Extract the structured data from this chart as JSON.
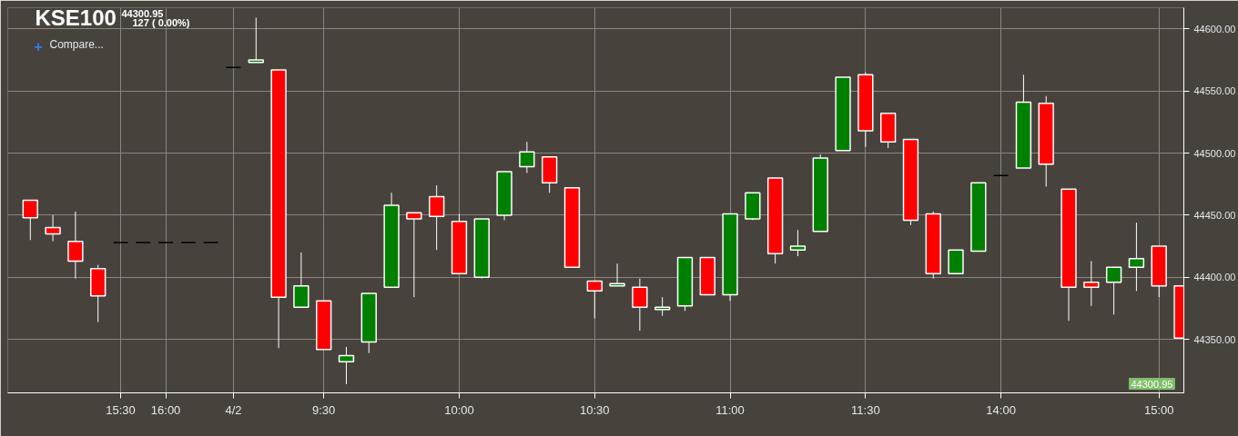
{
  "chart_data": {
    "type": "candlestick",
    "title": "KSE100",
    "annotations": [
      "44300.95",
      "127 ( 0.00%)",
      "Compare...",
      "44300.95",
      "+"
    ],
    "categories": [
      null,
      null,
      null,
      null,
      "15:30",
      null,
      "16:00",
      null,
      null,
      "4/2",
      null,
      null,
      null,
      "9:30",
      null,
      null,
      null,
      null,
      null,
      "10:00",
      null,
      null,
      null,
      null,
      null,
      "10:30",
      null,
      null,
      null,
      null,
      null,
      "11:00",
      null,
      null,
      null,
      null,
      null,
      "11:30",
      null,
      null,
      null,
      null,
      null,
      "14:00",
      null,
      null,
      null,
      null,
      null,
      null,
      "15:00",
      null
    ],
    "ohlc": [
      [
        44462,
        44462,
        44430,
        44448
      ],
      [
        44440,
        44450,
        44429,
        44435
      ],
      [
        44429,
        44453,
        44399,
        44413
      ],
      [
        44407,
        44410,
        44364,
        44385
      ],
      [
        44428,
        44428,
        44428,
        44428
      ],
      [
        44428,
        44428,
        44428,
        44428
      ],
      [
        44428,
        44428,
        44428,
        44428
      ],
      [
        44428,
        44428,
        44428,
        44428
      ],
      [
        44428,
        44428,
        44428,
        44428
      ],
      [
        44569,
        44569,
        44569,
        44569
      ],
      [
        44573,
        44609,
        44573,
        44575
      ],
      [
        44567,
        44567,
        44343,
        44384
      ],
      [
        44376,
        44420,
        44376,
        44393
      ],
      [
        44381,
        44381,
        44342,
        44342
      ],
      [
        44332,
        44344,
        44314,
        44337
      ],
      [
        44348,
        44387,
        44339,
        44387
      ],
      [
        44392,
        44468,
        44392,
        44458
      ],
      [
        44452,
        44452,
        44384,
        44447
      ],
      [
        44465,
        44474,
        44422,
        44449
      ],
      [
        44445,
        44451,
        44403,
        44403
      ],
      [
        44400,
        44447,
        44399,
        44447
      ],
      [
        44450,
        44485,
        44446,
        44485
      ],
      [
        44489,
        44509,
        44484,
        44501
      ],
      [
        44497,
        44497,
        44468,
        44476
      ],
      [
        44472,
        44472,
        44408,
        44408
      ],
      [
        44397,
        44397,
        44367,
        44389
      ],
      [
        44393,
        44411,
        44393,
        44395
      ],
      [
        44392,
        44399,
        44357,
        44376
      ],
      [
        44374,
        44384,
        44369,
        44376
      ],
      [
        44377,
        44416,
        44373,
        44416
      ],
      [
        44416,
        44416,
        44386,
        44386
      ],
      [
        44386,
        44451,
        44381,
        44451
      ],
      [
        44447,
        44468,
        44446,
        44468
      ],
      [
        44480,
        44480,
        44411,
        44419
      ],
      [
        44422,
        44438,
        44417,
        44425
      ],
      [
        44437,
        44499,
        44437,
        44496
      ],
      [
        44502,
        44561,
        44502,
        44561
      ],
      [
        44563,
        44565,
        44505,
        44518
      ],
      [
        44532,
        44532,
        44504,
        44509
      ],
      [
        44511,
        44511,
        44442,
        44446
      ],
      [
        44451,
        44453,
        44399,
        44403
      ],
      [
        44403,
        44422,
        44403,
        44422
      ],
      [
        44421,
        44476,
        44421,
        44476
      ],
      [
        44482,
        44482,
        44482,
        44482
      ],
      [
        44488,
        44563,
        44488,
        44541
      ],
      [
        44540,
        44546,
        44473,
        44491
      ],
      [
        44471,
        44471,
        44365,
        44392
      ],
      [
        44396,
        44413,
        44377,
        44392
      ],
      [
        44396,
        44408,
        44370,
        44408
      ],
      [
        44408,
        44444,
        44389,
        44415
      ],
      [
        44425,
        44425,
        44384,
        44393
      ],
      [
        44393,
        44393,
        44351,
        44351
      ]
    ],
    "colors": [
      "#ff0000",
      "#ff0000",
      "#ff0000",
      "#ff0000",
      "#000000",
      "#000000",
      "#000000",
      "#000000",
      "#000000",
      "#000000",
      "#008000",
      "#ff0000",
      "#008000",
      "#ff0000",
      "#008000",
      "#008000",
      "#008000",
      "#ff0000",
      "#ff0000",
      "#ff0000",
      "#008000",
      "#008000",
      "#008000",
      "#ff0000",
      "#ff0000",
      "#ff0000",
      "#008000",
      "#ff0000",
      "#008000",
      "#008000",
      "#ff0000",
      "#008000",
      "#008000",
      "#ff0000",
      "#008000",
      "#008000",
      "#008000",
      "#ff0000",
      "#ff0000",
      "#ff0000",
      "#ff0000",
      "#008000",
      "#008000",
      "#000000",
      "#008000",
      "#ff0000",
      "#ff0000",
      "#ff0000",
      "#008000",
      "#008000",
      "#ff0000",
      "#ff0000"
    ],
    "ylim": [
      44307,
      44617
    ],
    "yticks": [
      {
        "value": 44350,
        "label": "44350.00"
      },
      {
        "value": 44400,
        "label": "44400.00"
      },
      {
        "value": 44450,
        "label": "44450.00"
      },
      {
        "value": 44500,
        "label": "44500.00"
      },
      {
        "value": 44550,
        "label": "44550.00"
      },
      {
        "value": 44600,
        "label": "44600.00"
      }
    ],
    "grid": true
  }
}
